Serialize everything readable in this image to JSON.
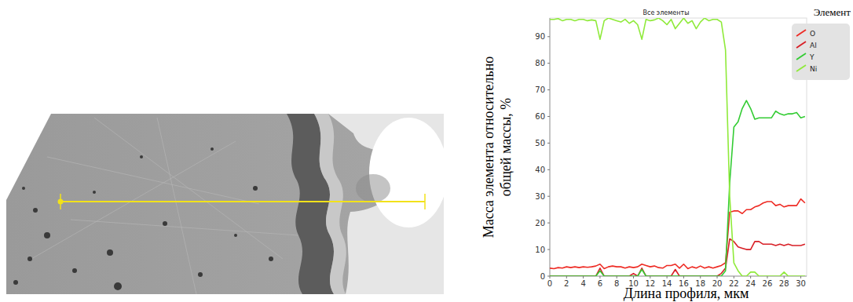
{
  "chart_data": {
    "type": "line",
    "title": "Все элементы",
    "x_label": "Длина профиля, мкм",
    "y_label": "Масса элемента относительно общей массы, %",
    "legend_title": "Элемент",
    "legend": "top-right",
    "xlim": [
      0,
      30.7
    ],
    "xticks": [
      0,
      2,
      4,
      6,
      8,
      10,
      12,
      14,
      16,
      18,
      20,
      22,
      24,
      26,
      28,
      30
    ],
    "ylim": [
      0,
      97
    ],
    "yticks": [
      0,
      10,
      20,
      30,
      40,
      50,
      60,
      70,
      80,
      90
    ],
    "x": [
      0,
      0.5,
      1,
      1.5,
      2,
      2.5,
      3,
      3.5,
      4,
      4.5,
      5,
      5.5,
      6,
      6.5,
      7,
      7.5,
      8,
      8.5,
      9,
      9.5,
      10,
      10.5,
      11,
      11.5,
      12,
      12.5,
      13,
      13.5,
      14,
      14.5,
      15,
      15.5,
      16,
      16.5,
      17,
      17.5,
      18,
      18.5,
      19,
      19.5,
      20,
      20.5,
      21,
      21.5,
      22,
      22.5,
      23,
      23.5,
      24,
      24.5,
      25,
      25.5,
      26,
      26.5,
      27,
      27.5,
      28,
      28.5,
      29,
      29.5,
      30,
      30.5
    ],
    "series": [
      {
        "name": "O",
        "color": "#ee2b24",
        "values": [
          3,
          2.8,
          3.2,
          3,
          3.5,
          3.2,
          3.5,
          3.2,
          3.5,
          3.3,
          3.5,
          3.8,
          4.5,
          2.8,
          3.5,
          3.8,
          3.5,
          3.5,
          3,
          3.5,
          3.2,
          3.5,
          4.5,
          4,
          3.5,
          3.8,
          3.2,
          3,
          4,
          4,
          4.5,
          3,
          4.5,
          2.8,
          3.5,
          3,
          3.8,
          3,
          3.5,
          3,
          3.5,
          4,
          5,
          24,
          24.5,
          24.5,
          23.5,
          25,
          25,
          26,
          26.5,
          27.5,
          28,
          28,
          26.5,
          27,
          26,
          26.5,
          26.5,
          26.5,
          29,
          27.5
        ]
      },
      {
        "name": "Al",
        "color": "#d81f26",
        "values": [
          0,
          0,
          0,
          0,
          0,
          0,
          0,
          0,
          0,
          0,
          0,
          0,
          3,
          0,
          0,
          0,
          0,
          0,
          0,
          0,
          1,
          0,
          3,
          0,
          0,
          0,
          0,
          0,
          0,
          0,
          2.5,
          0,
          0,
          0,
          0,
          0,
          0,
          0,
          0,
          0,
          0,
          1,
          3,
          14,
          13,
          11,
          10.5,
          10,
          10,
          13,
          13,
          12,
          12,
          12,
          11.5,
          12,
          11.5,
          12,
          11.5,
          11.5,
          11.5,
          12
        ]
      },
      {
        "name": "Y",
        "color": "#33cc33",
        "values": [
          0,
          0,
          0,
          0,
          0,
          0,
          0,
          0,
          0,
          0,
          0,
          0,
          2,
          0,
          0,
          0,
          0,
          0,
          0,
          0,
          0,
          0,
          2.5,
          0,
          0,
          0,
          0,
          0,
          0,
          0,
          0,
          0,
          0,
          0,
          0,
          0,
          0,
          0,
          0,
          0,
          0,
          0,
          2,
          35,
          56,
          58,
          63,
          66,
          63,
          59,
          59.5,
          59.5,
          59.5,
          59.5,
          62,
          61,
          60.5,
          61,
          61,
          61.5,
          59.5,
          60
        ]
      },
      {
        "name": "Ni",
        "color": "#8fea3a",
        "values": [
          96.5,
          96.5,
          96.8,
          96,
          96.5,
          96.5,
          96,
          96.5,
          96.5,
          96,
          96.3,
          96,
          89,
          96,
          97,
          96.5,
          96,
          95.5,
          96.5,
          95,
          96,
          94.5,
          89,
          96.5,
          96,
          96.3,
          97,
          96,
          94.5,
          96.5,
          93,
          95,
          97,
          95,
          96,
          93,
          95.5,
          97,
          96,
          96.5,
          96.5,
          95.5,
          85,
          30,
          5,
          2,
          0,
          0,
          1.5,
          1.5,
          0,
          0,
          0,
          0,
          0,
          0,
          1.5,
          0,
          0,
          0,
          0,
          0
        ]
      }
    ]
  }
}
